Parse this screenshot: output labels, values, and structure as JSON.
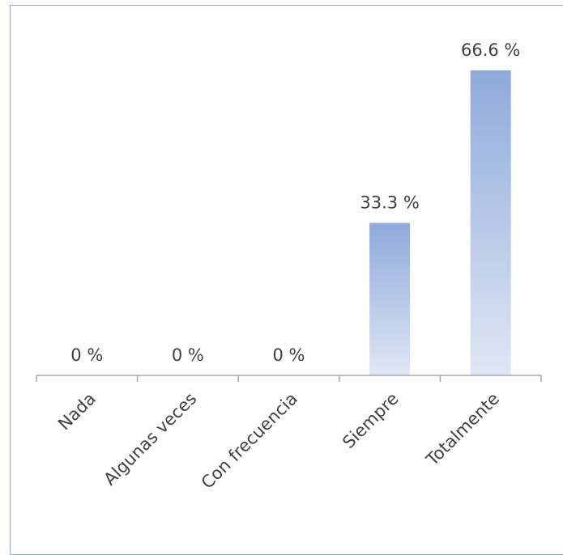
{
  "chart_data": {
    "type": "bar",
    "categories": [
      "Nada",
      "Algunas veces",
      "Con frecuencia",
      "Siempre",
      "Totalmente"
    ],
    "values": [
      0,
      0,
      0,
      33.3,
      66.6
    ],
    "data_labels": [
      "0 %",
      "0  %",
      "0 %",
      "33.3 %",
      "66.6 %"
    ],
    "title": "",
    "xlabel": "",
    "ylabel": "",
    "ylim": [
      0,
      72
    ],
    "grid": false,
    "legend": "none",
    "bar_color_top": "#8eaadb",
    "bar_color_bottom": "#dfe7f5",
    "axis_color": "#a6a6a6",
    "frame_color": "#8ea9d8",
    "text_color": "#404040"
  }
}
